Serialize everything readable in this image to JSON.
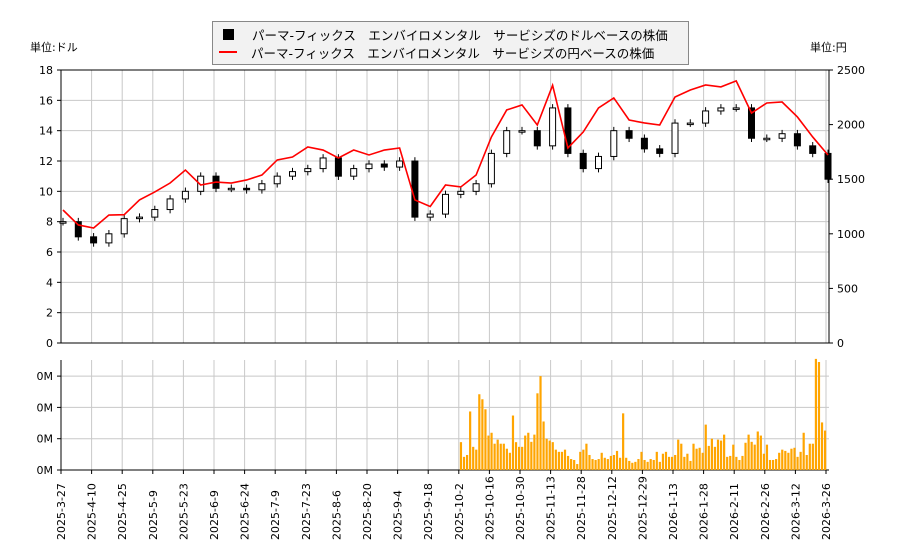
{
  "legend": {
    "usd_series": "パーマ-フィックス　エンバイロメンタル　サービシズのドルベースの株価",
    "jpy_series": "パーマ-フィックス　エンバイロメンタル　サービシズの円ベースの株価"
  },
  "units": {
    "left": "単位:ドル",
    "right": "単位:円"
  },
  "colors": {
    "usd": "#000000",
    "jpy": "#ff0000",
    "volume": "#ffa500",
    "grid": "#c8c8c8"
  },
  "chart_data": [
    {
      "type": "line",
      "subtype": "candlestick+line",
      "x_ticks": [
        "2025-3-27",
        "2025-4-10",
        "2025-4-25",
        "2025-5-9",
        "2025-5-23",
        "2025-6-9",
        "2025-6-24",
        "2025-7-9",
        "2025-7-23",
        "2025-8-6",
        "2025-8-20",
        "2025-9-4",
        "2025-9-18",
        "2025-10-2",
        "2025-10-16",
        "2025-10-30",
        "2025-11-13",
        "2025-11-28",
        "2025-12-12",
        "2025-12-29",
        "2026-1-13",
        "2026-1-28",
        "2026-2-11",
        "2026-2-26",
        "2026-3-12",
        "2026-3-26"
      ],
      "x": [
        "2025-3-27",
        "2025-4-3",
        "2025-4-10",
        "2025-4-17",
        "2025-4-25",
        "2025-5-2",
        "2025-5-9",
        "2025-5-16",
        "2025-5-23",
        "2025-5-30",
        "2025-6-9",
        "2025-6-16",
        "2025-6-24",
        "2025-7-1",
        "2025-7-9",
        "2025-7-16",
        "2025-7-23",
        "2025-7-30",
        "2025-8-6",
        "2025-8-13",
        "2025-8-20",
        "2025-8-27",
        "2025-9-4",
        "2025-9-11",
        "2025-9-18",
        "2025-9-25",
        "2025-10-2",
        "2025-10-9",
        "2025-10-16",
        "2025-10-23",
        "2025-10-30",
        "2025-11-6",
        "2025-11-13",
        "2025-11-20",
        "2025-11-28",
        "2025-12-5",
        "2025-12-12",
        "2025-12-19",
        "2025-12-29",
        "2026-1-6",
        "2026-1-13",
        "2026-1-21",
        "2026-1-28",
        "2026-2-4",
        "2026-2-11",
        "2026-2-18",
        "2026-2-26",
        "2026-3-5",
        "2026-3-12",
        "2026-3-19",
        "2026-3-26"
      ],
      "series": [
        {
          "name": "パーマ-フィックス　エンバイロメンタル　サービシズのドルベースの株価",
          "axis": "left",
          "values": [
            8.0,
            7.0,
            6.6,
            7.2,
            8.2,
            8.3,
            8.8,
            9.5,
            10.0,
            11.0,
            10.2,
            10.2,
            10.1,
            10.5,
            11.0,
            11.3,
            11.5,
            12.2,
            11.0,
            11.5,
            11.8,
            11.6,
            12.0,
            8.3,
            8.5,
            9.8,
            10.0,
            10.5,
            12.5,
            14.0,
            14.0,
            13.0,
            15.5,
            12.5,
            11.5,
            12.3,
            14.0,
            13.5,
            12.8,
            12.5,
            14.5,
            14.5,
            15.3,
            15.5,
            15.5,
            13.5,
            13.5,
            13.8,
            13.0,
            12.5,
            10.8
          ]
        },
        {
          "name": "パーマ-フィックス　エンバイロメンタル　サービシズの円ベースの株価",
          "axis": "right",
          "values": [
            1218,
            1081,
            1053,
            1172,
            1175,
            1310,
            1383,
            1465,
            1584,
            1447,
            1474,
            1465,
            1493,
            1538,
            1676,
            1703,
            1795,
            1767,
            1694,
            1767,
            1722,
            1767,
            1786,
            1310,
            1250,
            1447,
            1429,
            1538,
            1887,
            2134,
            2180,
            1996,
            2360,
            1786,
            1932,
            2152,
            2244,
            2042,
            2015,
            1996,
            2253,
            2317,
            2363,
            2345,
            2400,
            2106,
            2198,
            2207,
            2070,
            1887,
            1722
          ]
        }
      ],
      "y_left": {
        "ylim": [
          0,
          18
        ],
        "ticks": [
          "0",
          "2",
          "4",
          "6",
          "8",
          "10",
          "12",
          "14",
          "16",
          "18"
        ]
      },
      "y_right": {
        "ylim": [
          0,
          2500
        ],
        "ticks": [
          "0",
          "500",
          "1000",
          "1500",
          "2000",
          "2500"
        ]
      },
      "grid": true,
      "legend_position": "top-center"
    },
    {
      "type": "bar",
      "unit": "M",
      "first_date": "2025-10-6",
      "last_date": "2026-3-26",
      "values": [
        0.089,
        0.042,
        0.048,
        0.187,
        0.074,
        0.065,
        0.242,
        0.226,
        0.194,
        0.11,
        0.119,
        0.084,
        0.097,
        0.084,
        0.084,
        0.068,
        0.055,
        0.174,
        0.089,
        0.074,
        0.074,
        0.11,
        0.119,
        0.09,
        0.113,
        0.245,
        0.3,
        0.155,
        0.1,
        0.094,
        0.089,
        0.065,
        0.058,
        0.058,
        0.065,
        0.045,
        0.035,
        0.032,
        0.019,
        0.058,
        0.065,
        0.084,
        0.048,
        0.035,
        0.032,
        0.035,
        0.055,
        0.039,
        0.035,
        0.045,
        0.048,
        0.061,
        0.039,
        0.181,
        0.039,
        0.029,
        0.023,
        0.026,
        0.035,
        0.058,
        0.032,
        0.026,
        0.035,
        0.032,
        0.058,
        0.026,
        0.052,
        0.058,
        0.042,
        0.042,
        0.048,
        0.097,
        0.084,
        0.042,
        0.052,
        0.029,
        0.084,
        0.068,
        0.071,
        0.055,
        0.145,
        0.077,
        0.1,
        0.074,
        0.097,
        0.094,
        0.113,
        0.042,
        0.045,
        0.081,
        0.042,
        0.032,
        0.045,
        0.087,
        0.113,
        0.09,
        0.081,
        0.123,
        0.11,
        0.052,
        0.081,
        0.032,
        0.032,
        0.035,
        0.055,
        0.065,
        0.061,
        0.055,
        0.068,
        0.071,
        0.042,
        0.058,
        0.119,
        0.048,
        0.084,
        0.084,
        0.355,
        0.345,
        0.152,
        0.126
      ],
      "y_ticks": [
        "0M",
        "0M",
        "0M",
        "0M"
      ],
      "ylim": [
        0,
        0.35
      ],
      "grid": true
    }
  ]
}
